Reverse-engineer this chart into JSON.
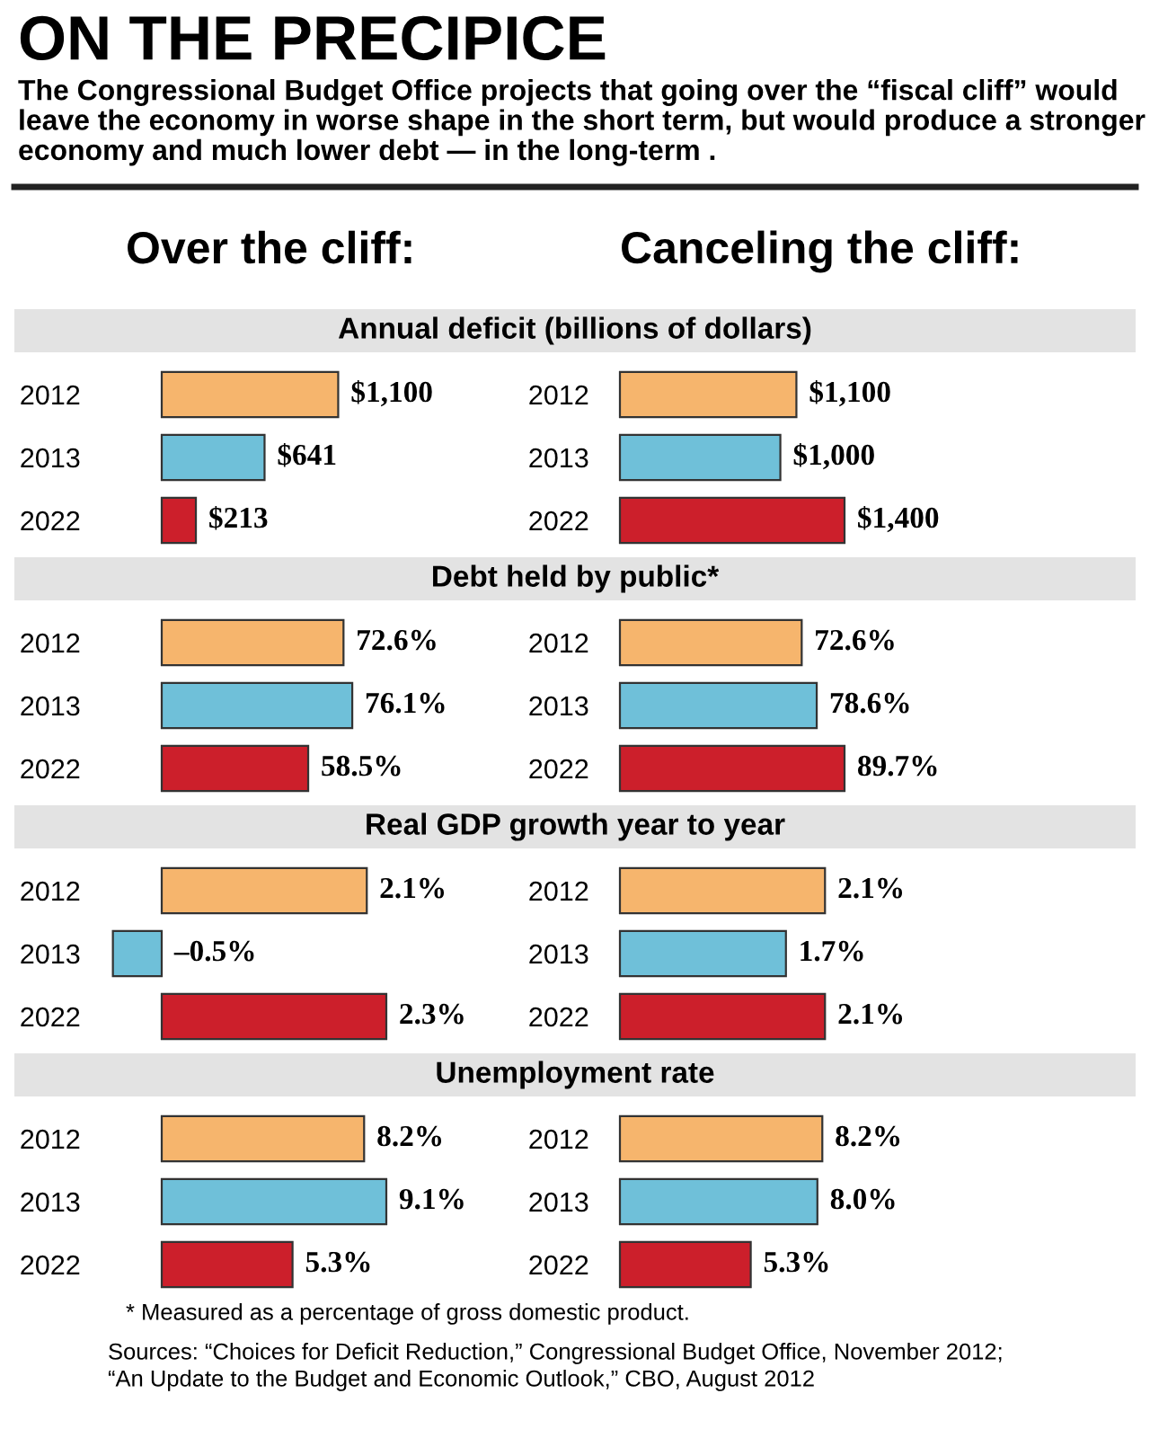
{
  "chart_data": [
    {
      "type": "other",
      "title": "ON THE PRECIPICE",
      "subtitle": "The Congressional Budget Office projects that going over the “fiscal cliff” would leave the economy in worse shape in the short term, but would produce a stronger economy and much lower debt — in the long-term .",
      "annotations": [
        "Annual deficit (billions of dollars)",
        "Debt held by public*",
        "Real GDP growth year to year",
        "Unemployment rate",
        "* Measured as a percentage of gross domestic product.",
        "Sources: “Choices for Deficit Reduction,” Congressional Budget Office, November 2012;",
        "“An Update to the Budget and Economic Outlook,” CBO, August 2012"
      ]
    },
    {
      "type": "bar",
      "orientation": "horizontal",
      "title": "Over the cliff:",
      "categories": [
        "2012",
        "2013",
        "2022"
      ],
      "values": [
        1100,
        641,
        213
      ],
      "colors": [
        "#f6b56d",
        "#6fc0d9",
        "#cc1f2b"
      ],
      "value_labels": [
        "$1,100",
        "$641",
        "$213"
      ]
    },
    {
      "type": "bar",
      "orientation": "horizontal",
      "title": "Canceling the cliff:",
      "categories": [
        "2012",
        "2013",
        "2022"
      ],
      "values": [
        1100,
        1000,
        1400
      ],
      "colors": [
        "#f6b56d",
        "#6fc0d9",
        "#cc1f2b"
      ],
      "value_labels": [
        "$1,100",
        "$1,000",
        "$1,400"
      ]
    },
    {
      "type": "bar",
      "orientation": "horizontal",
      "categories": [
        "2012",
        "2013",
        "2022"
      ],
      "values": [
        72.6,
        76.1,
        58.5
      ],
      "colors": [
        "#f6b56d",
        "#6fc0d9",
        "#cc1f2b"
      ],
      "value_labels": [
        "72.6%",
        "76.1%",
        "58.5%"
      ]
    },
    {
      "type": "bar",
      "orientation": "horizontal",
      "categories": [
        "2012",
        "2013",
        "2022"
      ],
      "values": [
        72.6,
        78.6,
        89.7
      ],
      "colors": [
        "#f6b56d",
        "#6fc0d9",
        "#cc1f2b"
      ],
      "value_labels": [
        "72.6%",
        "78.6%",
        "89.7%"
      ]
    },
    {
      "type": "bar",
      "orientation": "horizontal",
      "categories": [
        "2012",
        "2013",
        "2022"
      ],
      "values": [
        2.1,
        -0.5,
        2.3
      ],
      "colors": [
        "#f6b56d",
        "#6fc0d9",
        "#cc1f2b"
      ],
      "value_labels": [
        "2.1%",
        "–0.5%",
        "2.3%"
      ]
    },
    {
      "type": "bar",
      "orientation": "horizontal",
      "categories": [
        "2012",
        "2013",
        "2022"
      ],
      "values": [
        2.1,
        1.7,
        2.1
      ],
      "colors": [
        "#f6b56d",
        "#6fc0d9",
        "#cc1f2b"
      ],
      "value_labels": [
        "2.1%",
        "1.7%",
        "2.1%"
      ]
    },
    {
      "type": "bar",
      "orientation": "horizontal",
      "categories": [
        "2012",
        "2013",
        "2022"
      ],
      "values": [
        8.2,
        9.1,
        5.3
      ],
      "colors": [
        "#f6b56d",
        "#6fc0d9",
        "#cc1f2b"
      ],
      "value_labels": [
        "8.2%",
        "9.1%",
        "5.3%"
      ]
    },
    {
      "type": "bar",
      "orientation": "horizontal",
      "categories": [
        "2012",
        "2013",
        "2022"
      ],
      "values": [
        8.2,
        8.0,
        5.3
      ],
      "colors": [
        "#f6b56d",
        "#6fc0d9",
        "#cc1f2b"
      ],
      "value_labels": [
        "8.2%",
        "8.0%",
        "5.3%"
      ]
    }
  ]
}
